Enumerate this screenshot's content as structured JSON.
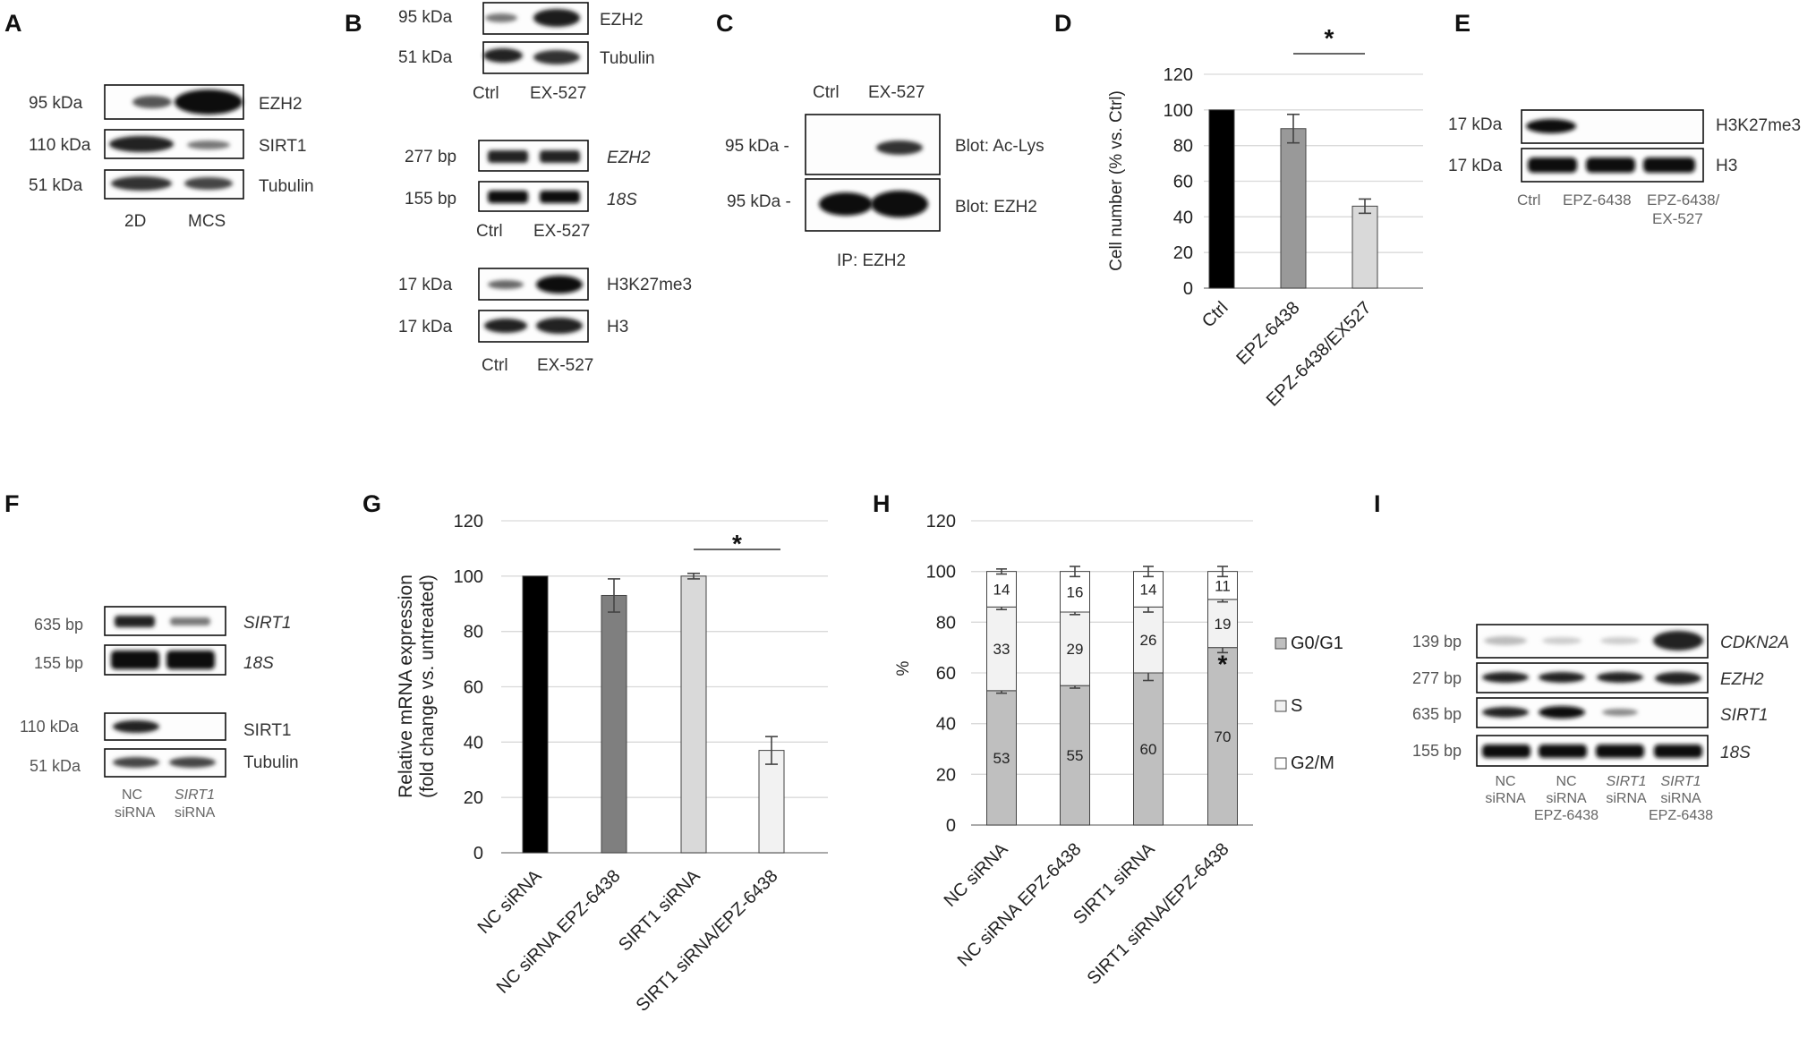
{
  "panel_letters": {
    "A": "A",
    "B": "B",
    "C": "C",
    "D": "D",
    "E": "E",
    "F": "F",
    "G": "G",
    "H": "H",
    "I": "I"
  },
  "panelA": {
    "sizes": [
      "95 kDa",
      "110 kDa",
      "51 kDa"
    ],
    "proteins": [
      "EZH2",
      "SIRT1",
      "Tubulin"
    ],
    "lanes": [
      "2D",
      "MCS"
    ]
  },
  "panelB": {
    "blot1": {
      "sizes": [
        "95 kDa",
        "51 kDa"
      ],
      "labels": [
        "EZH2",
        "Tubulin"
      ],
      "lanes": [
        "Ctrl",
        "EX-527"
      ]
    },
    "blot2": {
      "sizes": [
        "277 bp",
        "155 bp"
      ],
      "labels": [
        "EZH2",
        "18S"
      ],
      "lanes": [
        "Ctrl",
        "EX-527"
      ]
    },
    "blot3": {
      "sizes": [
        "17 kDa",
        "17 kDa"
      ],
      "labels": [
        "H3K27me3",
        "H3"
      ],
      "lanes": [
        "Ctrl",
        "EX-527"
      ]
    }
  },
  "panelC": {
    "lanes": [
      "Ctrl",
      "EX-527"
    ],
    "sizes": [
      "95 kDa -",
      "95 kDa -"
    ],
    "labels": [
      "Blot: Ac-Lys",
      "Blot: EZH2"
    ],
    "ip": "IP: EZH2"
  },
  "panelE": {
    "sizes": [
      "17 kDa",
      "17 kDa"
    ],
    "labels": [
      "H3K27me3",
      "H3"
    ],
    "lanes": [
      "Ctrl",
      "EPZ-6438",
      "EPZ-6438/",
      "EX-527"
    ]
  },
  "panelF": {
    "sizes": [
      "635 bp",
      "155 bp",
      "110 kDa",
      "51 kDa"
    ],
    "labels": [
      "SIRT1",
      "18S",
      "SIRT1",
      "Tubulin"
    ],
    "lanes": [
      "NC",
      "siRNA",
      "SIRT1",
      "siRNA"
    ]
  },
  "panelI": {
    "sizes": [
      "139 bp",
      "277 bp",
      "635 bp",
      "155 bp"
    ],
    "labels": [
      "CDKN2A",
      "EZH2",
      "SIRT1",
      "18S"
    ],
    "lanes": [
      [
        "NC",
        "siRNA"
      ],
      [
        "NC",
        "siRNA",
        "EPZ-6438"
      ],
      [
        "SIRT1",
        "siRNA"
      ],
      [
        "SIRT1",
        "siRNA",
        "EPZ-6438"
      ]
    ]
  },
  "chart_data": [
    {
      "id": "D",
      "type": "bar",
      "categories": [
        "Ctrl",
        "EPZ-6438",
        "EPZ-6438/EX527"
      ],
      "values": [
        100,
        89.5,
        46
      ],
      "errors": [
        0,
        8,
        4
      ],
      "colors": [
        "#000000",
        "#999999",
        "#d9d9d9"
      ],
      "ylabel": "Cell number (% vs. Ctrl)",
      "ylim": [
        0,
        120
      ],
      "yticks": [
        0,
        20,
        40,
        60,
        80,
        100,
        120
      ],
      "grid": true,
      "significance": "*"
    },
    {
      "id": "G",
      "type": "bar",
      "categories": [
        "NC siRNA",
        "NC siRNA EPZ-6438",
        "SIRT1 siRNA",
        "SIRT1 siRNA/EPZ-6438"
      ],
      "values": [
        100,
        93,
        100,
        37
      ],
      "errors": [
        0,
        6,
        1,
        5
      ],
      "colors": [
        "#000000",
        "#7f7f7f",
        "#d9d9d9",
        "#f2f2f2"
      ],
      "ylabel": [
        "Relative mRNA expression",
        "(fold change vs. untreated)"
      ],
      "ylim": [
        0,
        120
      ],
      "yticks": [
        0,
        20,
        40,
        60,
        80,
        100,
        120
      ],
      "grid": true,
      "significance": "*"
    },
    {
      "id": "H",
      "type": "bar",
      "stacked": true,
      "categories": [
        "NC siRNA",
        "NC siRNA EPZ-6438",
        "SIRT1 siRNA",
        "SIRT1 siRNA/EPZ-6438"
      ],
      "series": [
        {
          "name": "G0/G1",
          "values": [
            53,
            55,
            60,
            70
          ],
          "errors": [
            1,
            1,
            3,
            2
          ],
          "color": "#bfbfbf"
        },
        {
          "name": "S",
          "values": [
            33,
            29,
            26,
            19
          ],
          "errors": [
            1,
            1,
            2,
            1
          ],
          "color": "#f2f2f2"
        },
        {
          "name": "G2/M",
          "values": [
            14,
            16,
            14,
            11
          ],
          "errors": [
            1,
            2,
            2,
            2
          ],
          "color": "#ffffff"
        }
      ],
      "ylabel": "%",
      "ylim": [
        0,
        120
      ],
      "yticks": [
        0,
        20,
        40,
        60,
        80,
        100,
        120
      ],
      "grid": true,
      "significance": "*",
      "legend_position": "right"
    }
  ]
}
